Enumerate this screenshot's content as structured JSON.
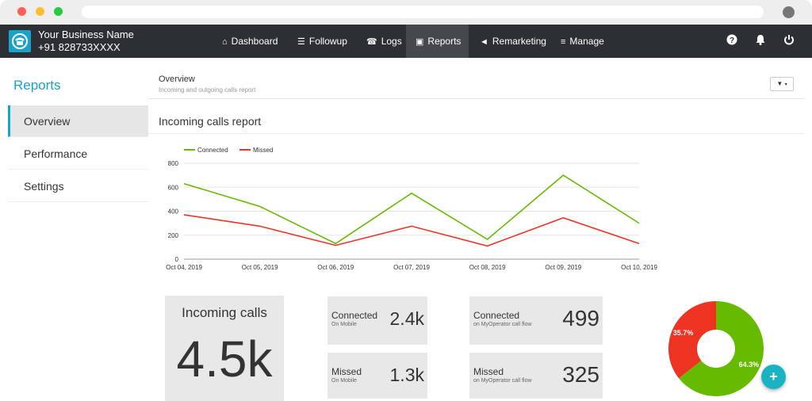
{
  "topnav": {
    "business_name": "Your Business Name",
    "phone": "+91 828733XXXX",
    "items": [
      {
        "label": "Dashboard",
        "icon": "home-icon"
      },
      {
        "label": "Followup",
        "icon": "list-icon"
      },
      {
        "label": "Logs",
        "icon": "phone-icon"
      },
      {
        "label": "Reports",
        "icon": "image-icon"
      },
      {
        "label": "Remarketing",
        "icon": "megaphone-icon"
      },
      {
        "label": "Manage",
        "icon": "menu-icon"
      }
    ],
    "active": "Reports"
  },
  "sidebar": {
    "title": "Reports",
    "items": [
      "Overview",
      "Performance",
      "Settings"
    ],
    "active": "Overview"
  },
  "overview": {
    "title": "Overview",
    "subtitle": "Incoming and outgoing calls report"
  },
  "chart_title": "Incoming calls report",
  "chart_data": {
    "type": "line",
    "x": [
      "Oct 04, 2019",
      "Oct 05, 2019",
      "Oct 06, 2019",
      "Oct 07, 2019",
      "Oct 08, 2019",
      "Oct 09, 2019",
      "Oct 10, 2019"
    ],
    "series": [
      {
        "name": "Connected",
        "color": "#66bb00",
        "values": [
          630,
          440,
          130,
          550,
          165,
          700,
          300
        ]
      },
      {
        "name": "Missed",
        "color": "#ee3322",
        "values": [
          370,
          275,
          115,
          275,
          110,
          345,
          130
        ]
      }
    ],
    "yticks": [
      "0",
      "200",
      "400",
      "600",
      "800"
    ],
    "ylim": [
      0,
      800
    ],
    "grid": true,
    "legend": "top-left"
  },
  "stats": {
    "incoming": {
      "label": "Incoming calls",
      "value": "4.5k"
    },
    "connected_mobile": {
      "label": "Connected",
      "sub": "On Mobile",
      "value": "2.4k"
    },
    "missed_mobile": {
      "label": "Missed",
      "sub": "On Mobile",
      "value": "1.3k"
    },
    "connected_flow": {
      "label": "Connected",
      "sub": "on MyOperator call flow",
      "value": "499"
    },
    "missed_flow": {
      "label": "Missed",
      "sub": "on MyOperator call flow",
      "value": "325"
    }
  },
  "donut": {
    "slices": [
      {
        "label": "64.3%",
        "value": 64.3,
        "color": "#66bb00"
      },
      {
        "label": "35.7%",
        "value": 35.7,
        "color": "#ee3322"
      }
    ]
  },
  "fab_label": "+"
}
